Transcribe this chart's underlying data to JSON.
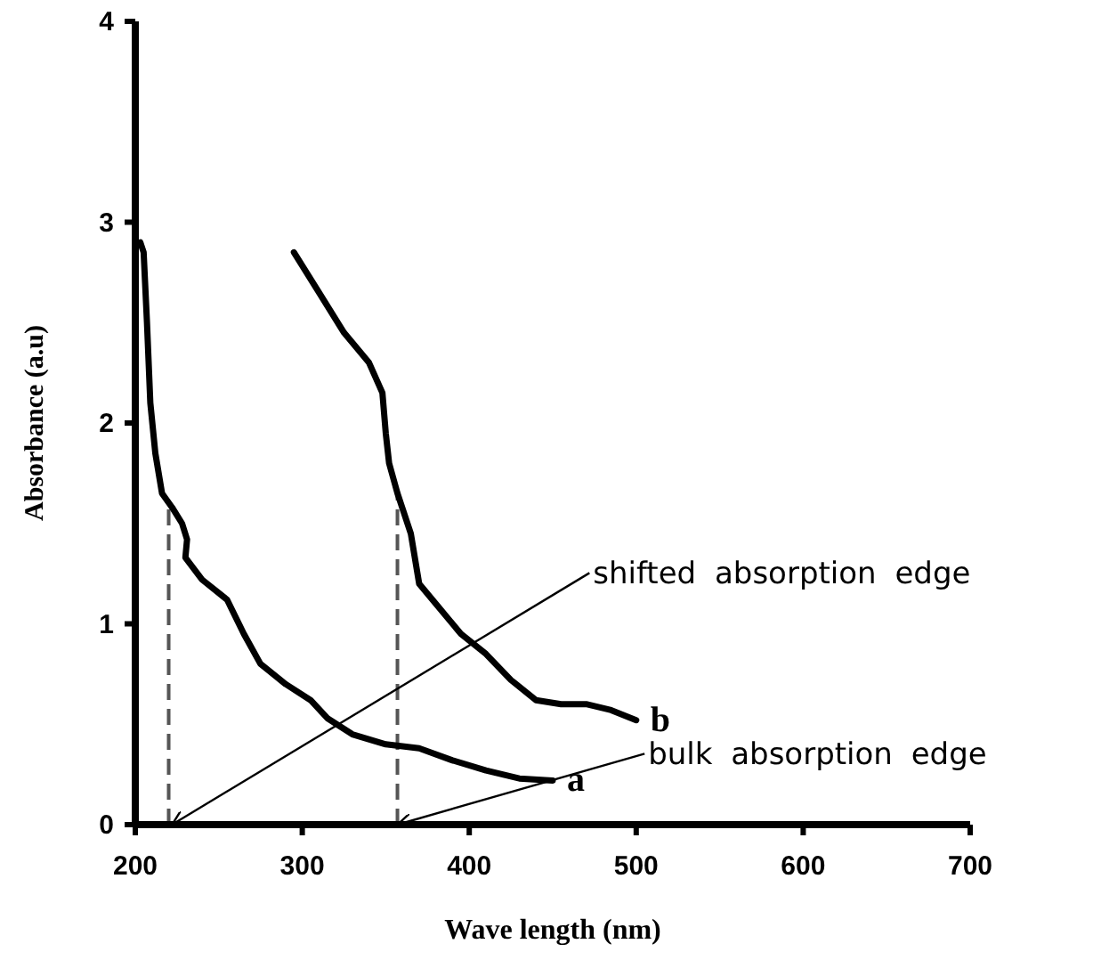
{
  "chart_data": {
    "type": "line",
    "xlabel": "Wave length (nm)",
    "ylabel": "Absorbance (a.u)",
    "xlim": [
      200,
      700
    ],
    "xticks": [
      200,
      300,
      400,
      500,
      600,
      700
    ],
    "ylim": [
      0,
      4
    ],
    "yticks": [
      0,
      1,
      2,
      3,
      4
    ],
    "series": [
      {
        "name": "a",
        "color": "#000000",
        "x": [
          203,
          205,
          207,
          209,
          212,
          216,
          222,
          228,
          231,
          230,
          240,
          255,
          265,
          275,
          290,
          305,
          315,
          330,
          350,
          370,
          390,
          410,
          430,
          450
        ],
        "values": [
          2.9,
          2.85,
          2.5,
          2.1,
          1.85,
          1.65,
          1.58,
          1.5,
          1.42,
          1.33,
          1.22,
          1.12,
          0.95,
          0.8,
          0.7,
          0.62,
          0.53,
          0.45,
          0.4,
          0.38,
          0.32,
          0.27,
          0.23,
          0.22
        ]
      },
      {
        "name": "b",
        "color": "#000000",
        "x": [
          295,
          310,
          325,
          340,
          348,
          350,
          352,
          357,
          365,
          370,
          380,
          395,
          410,
          425,
          440,
          455,
          470,
          485,
          500
        ],
        "values": [
          2.85,
          2.65,
          2.45,
          2.3,
          2.15,
          1.95,
          1.8,
          1.65,
          1.45,
          1.2,
          1.1,
          0.95,
          0.85,
          0.72,
          0.62,
          0.6,
          0.6,
          0.57,
          0.52
        ]
      }
    ],
    "ref_lines": [
      {
        "axis": "x",
        "value": 220,
        "color": "#555555",
        "line_style": "dashed"
      },
      {
        "axis": "x",
        "value": 357,
        "color": "#555555",
        "line_style": "dashed"
      }
    ],
    "annotations": [
      {
        "text": "shifted absorption edge",
        "x": 222,
        "y": 0
      },
      {
        "text": "bulk absorption edge",
        "x": 357,
        "y": 0
      }
    ],
    "grid": false,
    "marker": "none",
    "line_style": "solid"
  }
}
